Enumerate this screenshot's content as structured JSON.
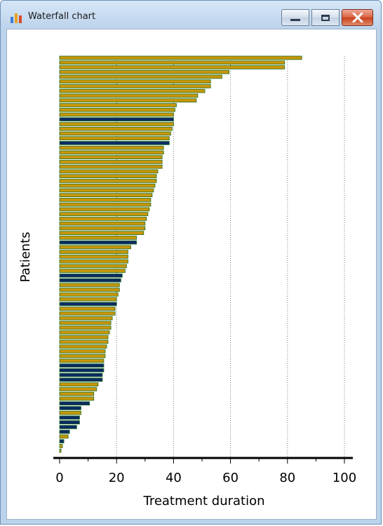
{
  "window": {
    "title": "Waterfall chart",
    "icons": [
      "chart-app-icon",
      "minimize-icon",
      "maximize-icon",
      "close-icon"
    ]
  },
  "chart_data": {
    "type": "bar",
    "orientation": "horizontal",
    "xlabel": "Treatment duration",
    "ylabel": "Patients",
    "xlim": [
      0,
      100
    ],
    "xticks": [
      "0",
      "20",
      "40",
      "60",
      "80",
      "100"
    ],
    "grid": "vertical dotted at 20, 40, 60, 80, 100",
    "legend": "none",
    "colors": {
      "default": "#c8960a",
      "highlight": "#0c2a64",
      "bar_border": "#1f6e1f"
    },
    "values": [
      85,
      79,
      79,
      59.5,
      57,
      53,
      53,
      51,
      48.5,
      48,
      41,
      40.5,
      40,
      40,
      40,
      39.5,
      39,
      38.5,
      38.5,
      36.5,
      36.5,
      36,
      36,
      36,
      34.5,
      34,
      34,
      33.5,
      33,
      32.5,
      32,
      32,
      31.5,
      31,
      30.5,
      30,
      30,
      29.5,
      27,
      27,
      25,
      24,
      24,
      24,
      23.5,
      23,
      22,
      21.5,
      21,
      21,
      20.5,
      20,
      20,
      19.5,
      19.5,
      18.5,
      18,
      18,
      17.5,
      17,
      17,
      16.5,
      16,
      16,
      15.5,
      15.5,
      15.5,
      15,
      15,
      13.5,
      13,
      12,
      12,
      10.5,
      7.5,
      7.5,
      7,
      7,
      6,
      3.5,
      3,
      1.5,
      1,
      0.5
    ],
    "highlighted": [
      13,
      18,
      39,
      46,
      47,
      52,
      65,
      66,
      67,
      68,
      73,
      74,
      76,
      77,
      78,
      79,
      81
    ]
  }
}
